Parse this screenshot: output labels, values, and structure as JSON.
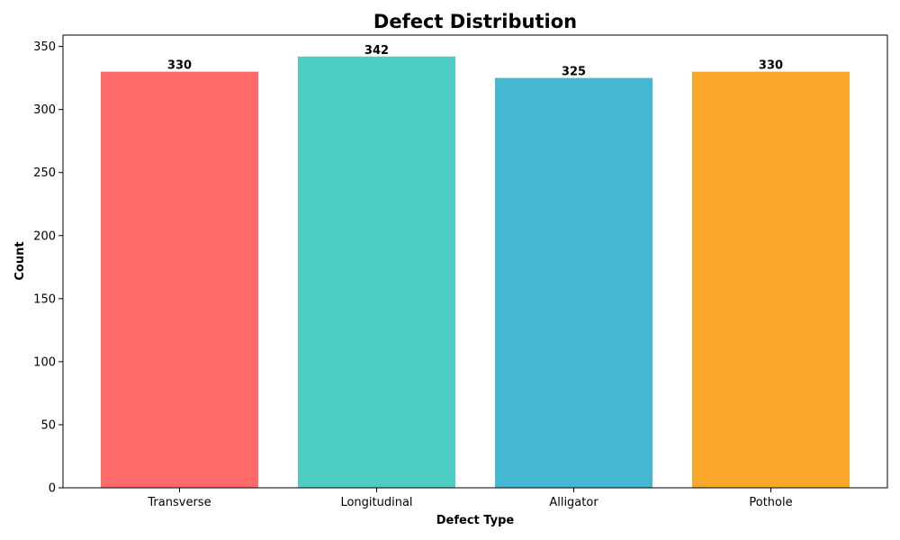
{
  "chart_data": {
    "type": "bar",
    "title": "Defect Distribution",
    "xlabel": "Defect Type",
    "ylabel": "Count",
    "categories": [
      "Transverse",
      "Longitudinal",
      "Alligator",
      "Pothole"
    ],
    "values": [
      330,
      342,
      325,
      330
    ],
    "data_labels": [
      "330",
      "342",
      "325",
      "330"
    ],
    "colors": [
      "#ff6b6b",
      "#4ecdc4",
      "#45b7d1",
      "#f9a72b"
    ],
    "ylim": [
      0,
      359
    ],
    "yticks": [
      0,
      50,
      100,
      150,
      200,
      250,
      300,
      350
    ],
    "grid": false,
    "legend": "none"
  }
}
